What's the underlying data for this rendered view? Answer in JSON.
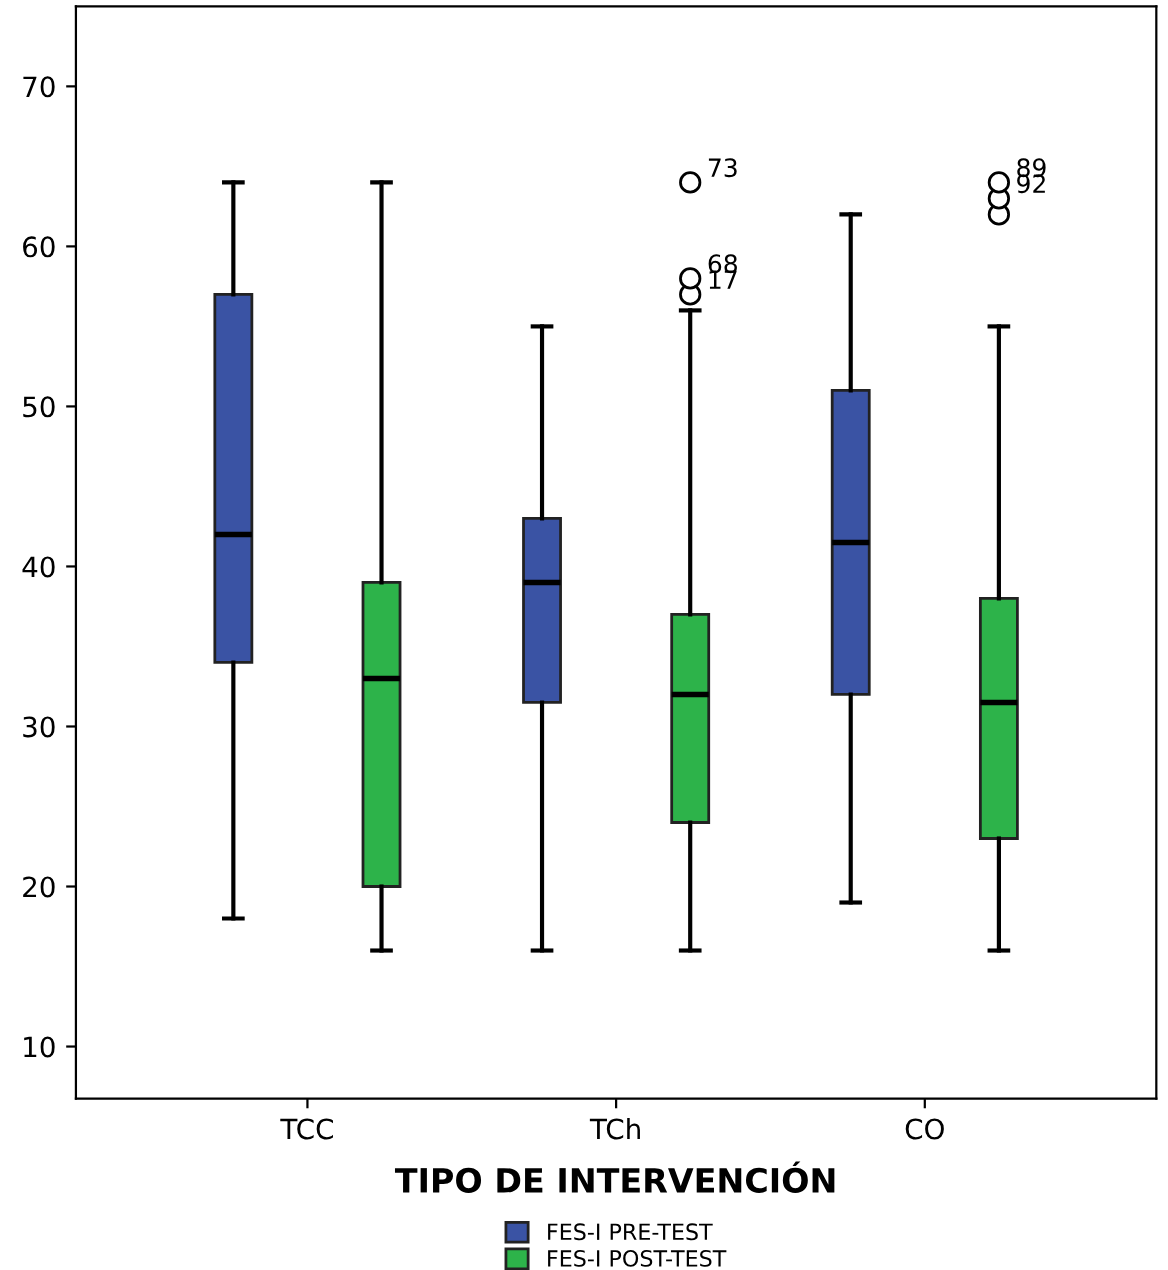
{
  "chart_data": {
    "type": "box",
    "xlabel": "TIPO DE INTERVENCIÓN",
    "categories": [
      "TCC",
      "TCh",
      "CO"
    ],
    "series": [
      {
        "name": "FES-I PRE-TEST",
        "color": "#3a53a4",
        "boxes": [
          {
            "low": 18,
            "q1": 34,
            "median": 42,
            "q3": 57,
            "high": 64
          },
          {
            "low": 16,
            "q1": 31.5,
            "median": 39,
            "q3": 43,
            "high": 55
          },
          {
            "low": 19,
            "q1": 32,
            "median": 41.5,
            "q3": 51,
            "high": 62
          }
        ]
      },
      {
        "name": "FES-I POST-TEST",
        "color": "#2db34a",
        "boxes": [
          {
            "low": 16,
            "q1": 20,
            "median": 33,
            "q3": 39,
            "high": 64
          },
          {
            "low": 16,
            "q1": 24,
            "median": 32,
            "q3": 37,
            "high": 56,
            "outliers": [
              57,
              58,
              64
            ]
          },
          {
            "low": 16,
            "q1": 23,
            "median": 31.5,
            "q3": 38,
            "high": 55,
            "outliers": [
              62,
              63,
              64
            ]
          }
        ]
      }
    ],
    "annotations": [
      "73",
      "68",
      "17",
      "89",
      "92"
    ],
    "ylim": [
      6.75,
      75
    ],
    "yticks": [
      10,
      20,
      30,
      40,
      50,
      60,
      70
    ],
    "grid": false,
    "legend": "bottom"
  }
}
